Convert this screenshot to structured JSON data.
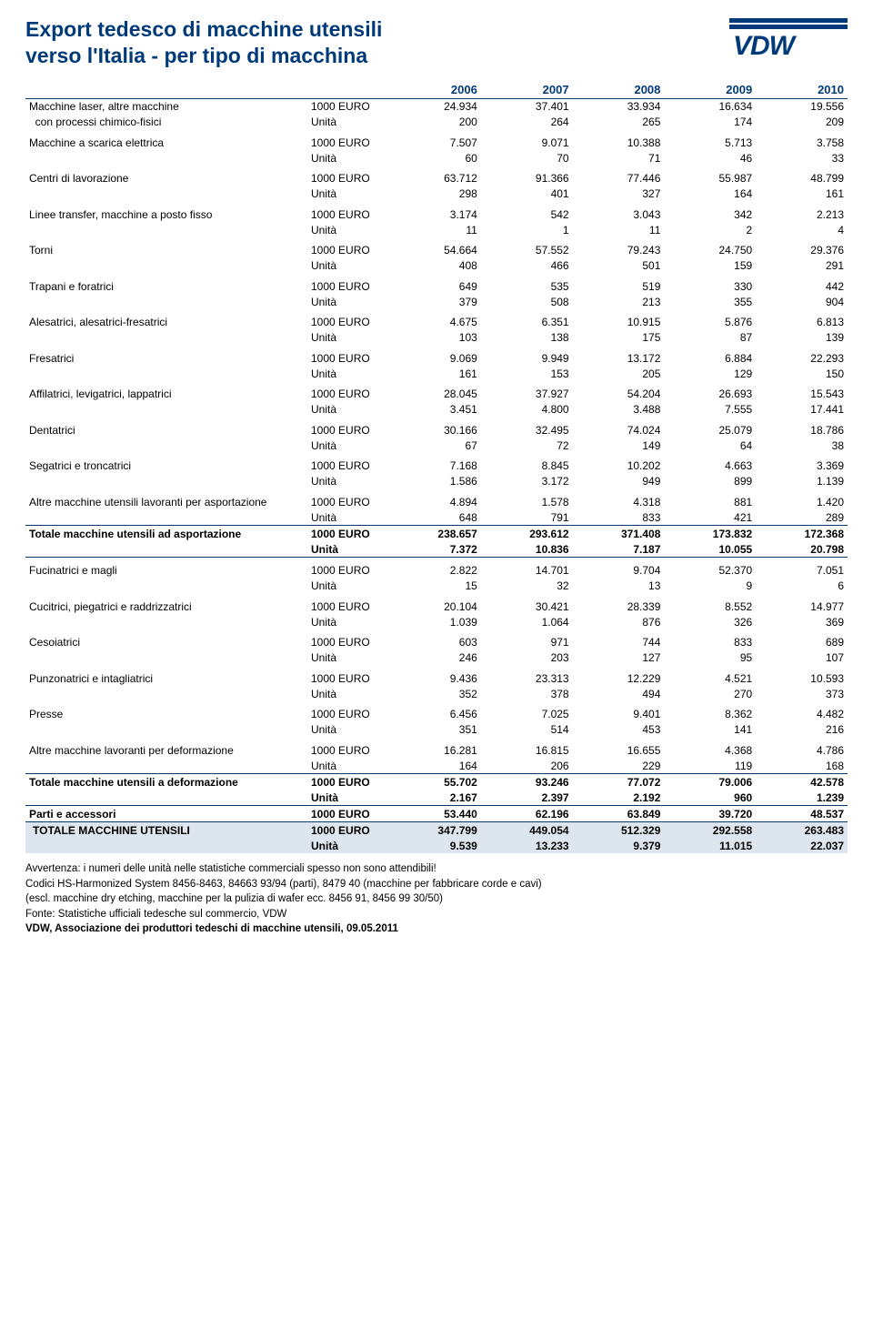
{
  "title_line1": "Export tedesco di macchine utensili",
  "title_line2": "verso l'Italia - per tipo di macchina",
  "logo_text": "VDW",
  "colors": {
    "brand": "#003a78",
    "band_bg": "#dde6ee",
    "text": "#000000",
    "background": "#ffffff"
  },
  "year_headers": [
    "2006",
    "2007",
    "2008",
    "2009",
    "2010"
  ],
  "unit_euro": "1000 EURO",
  "unit_qty": "Unità",
  "rows": [
    {
      "label": "Macchine laser, altre macchine",
      "euro": [
        "24.934",
        "37.401",
        "33.934",
        "16.634",
        "19.556"
      ],
      "qty": [
        "200",
        "264",
        "265",
        "174",
        "209"
      ],
      "indent2": "con processi chimico-fisici"
    },
    {
      "label": "Macchine a scarica elettrica",
      "euro": [
        "7.507",
        "9.071",
        "10.388",
        "5.713",
        "3.758"
      ],
      "qty": [
        "60",
        "70",
        "71",
        "46",
        "33"
      ]
    },
    {
      "label": "Centri di lavorazione",
      "euro": [
        "63.712",
        "91.366",
        "77.446",
        "55.987",
        "48.799"
      ],
      "qty": [
        "298",
        "401",
        "327",
        "164",
        "161"
      ]
    },
    {
      "label": "Linee transfer, macchine a posto fisso",
      "euro": [
        "3.174",
        "542",
        "3.043",
        "342",
        "2.213"
      ],
      "qty": [
        "11",
        "1",
        "11",
        "2",
        "4"
      ]
    },
    {
      "label": "Torni",
      "euro": [
        "54.664",
        "57.552",
        "79.243",
        "24.750",
        "29.376"
      ],
      "qty": [
        "408",
        "466",
        "501",
        "159",
        "291"
      ]
    },
    {
      "label": "Trapani e foratrici",
      "euro": [
        "649",
        "535",
        "519",
        "330",
        "442"
      ],
      "qty": [
        "379",
        "508",
        "213",
        "355",
        "904"
      ]
    },
    {
      "label": "Alesatrici, alesatrici-fresatrici",
      "euro": [
        "4.675",
        "6.351",
        "10.915",
        "5.876",
        "6.813"
      ],
      "qty": [
        "103",
        "138",
        "175",
        "87",
        "139"
      ]
    },
    {
      "label": "Fresatrici",
      "euro": [
        "9.069",
        "9.949",
        "13.172",
        "6.884",
        "22.293"
      ],
      "qty": [
        "161",
        "153",
        "205",
        "129",
        "150"
      ]
    },
    {
      "label": "Affilatrici, levigatrici, lappatrici",
      "euro": [
        "28.045",
        "37.927",
        "54.204",
        "26.693",
        "15.543"
      ],
      "qty": [
        "3.451",
        "4.800",
        "3.488",
        "7.555",
        "17.441"
      ]
    },
    {
      "label": "Dentatrici",
      "euro": [
        "30.166",
        "32.495",
        "74.024",
        "25.079",
        "18.786"
      ],
      "qty": [
        "67",
        "72",
        "149",
        "64",
        "38"
      ]
    },
    {
      "label": "Segatrici e troncatrici",
      "euro": [
        "7.168",
        "8.845",
        "10.202",
        "4.663",
        "3.369"
      ],
      "qty": [
        "1.586",
        "3.172",
        "949",
        "899",
        "1.139"
      ]
    },
    {
      "label": "Altre macchine utensili lavoranti per asportazione",
      "euro": [
        "4.894",
        "1.578",
        "4.318",
        "881",
        "1.420"
      ],
      "qty": [
        "648",
        "791",
        "833",
        "421",
        "289"
      ]
    }
  ],
  "subtotal1": {
    "label": "Totale macchine utensili ad asportazione",
    "euro": [
      "238.657",
      "293.612",
      "371.408",
      "173.832",
      "172.368"
    ],
    "qty": [
      "7.372",
      "10.836",
      "7.187",
      "10.055",
      "20.798"
    ]
  },
  "rows2": [
    {
      "label": "Fucinatrici e magli",
      "euro": [
        "2.822",
        "14.701",
        "9.704",
        "52.370",
        "7.051"
      ],
      "qty": [
        "15",
        "32",
        "13",
        "9",
        "6"
      ]
    },
    {
      "label": "Cucitrici, piegatrici e raddrizzatrici",
      "euro": [
        "20.104",
        "30.421",
        "28.339",
        "8.552",
        "14.977"
      ],
      "qty": [
        "1.039",
        "1.064",
        "876",
        "326",
        "369"
      ]
    },
    {
      "label": "Cesoiatrici",
      "euro": [
        "603",
        "971",
        "744",
        "833",
        "689"
      ],
      "qty": [
        "246",
        "203",
        "127",
        "95",
        "107"
      ]
    },
    {
      "label": "Punzonatrici e intagliatrici",
      "euro": [
        "9.436",
        "23.313",
        "12.229",
        "4.521",
        "10.593"
      ],
      "qty": [
        "352",
        "378",
        "494",
        "270",
        "373"
      ]
    },
    {
      "label": "Presse",
      "euro": [
        "6.456",
        "7.025",
        "9.401",
        "8.362",
        "4.482"
      ],
      "qty": [
        "351",
        "514",
        "453",
        "141",
        "216"
      ]
    },
    {
      "label": "Altre macchine lavoranti per deformazione",
      "euro": [
        "16.281",
        "16.815",
        "16.655",
        "4.368",
        "4.786"
      ],
      "qty": [
        "164",
        "206",
        "229",
        "119",
        "168"
      ]
    }
  ],
  "subtotal2": {
    "label": "Totale macchine utensili a deformazione",
    "euro": [
      "55.702",
      "93.246",
      "77.072",
      "79.006",
      "42.578"
    ],
    "qty": [
      "2.167",
      "2.397",
      "2.192",
      "960",
      "1.239"
    ]
  },
  "parti": {
    "label": "Parti e accessori",
    "euro": [
      "53.440",
      "62.196",
      "63.849",
      "39.720",
      "48.537"
    ]
  },
  "grand": {
    "label": "TOTALE MACCHINE UTENSILI",
    "euro": [
      "347.799",
      "449.054",
      "512.329",
      "292.558",
      "263.483"
    ],
    "qty": [
      "9.539",
      "13.233",
      "9.379",
      "11.015",
      "22.037"
    ]
  },
  "footnotes": [
    "Avvertenza: i numeri delle unità nelle statistiche commerciali spesso non sono attendibili!",
    "Codici HS-Harmonized System 8456-8463, 84663 93/94 (parti), 8479 40 (macchine per fabbricare corde e cavi)",
    "(escl.  macchine dry etching, macchine per la pulizia di wafer ecc. 8456 91, 8456 99 30/50)",
    "Fonte: Statistiche ufficiali tedesche sul commercio, VDW",
    "VDW, Associazione dei produttori tedeschi di macchine utensili, 09.05.2011"
  ]
}
